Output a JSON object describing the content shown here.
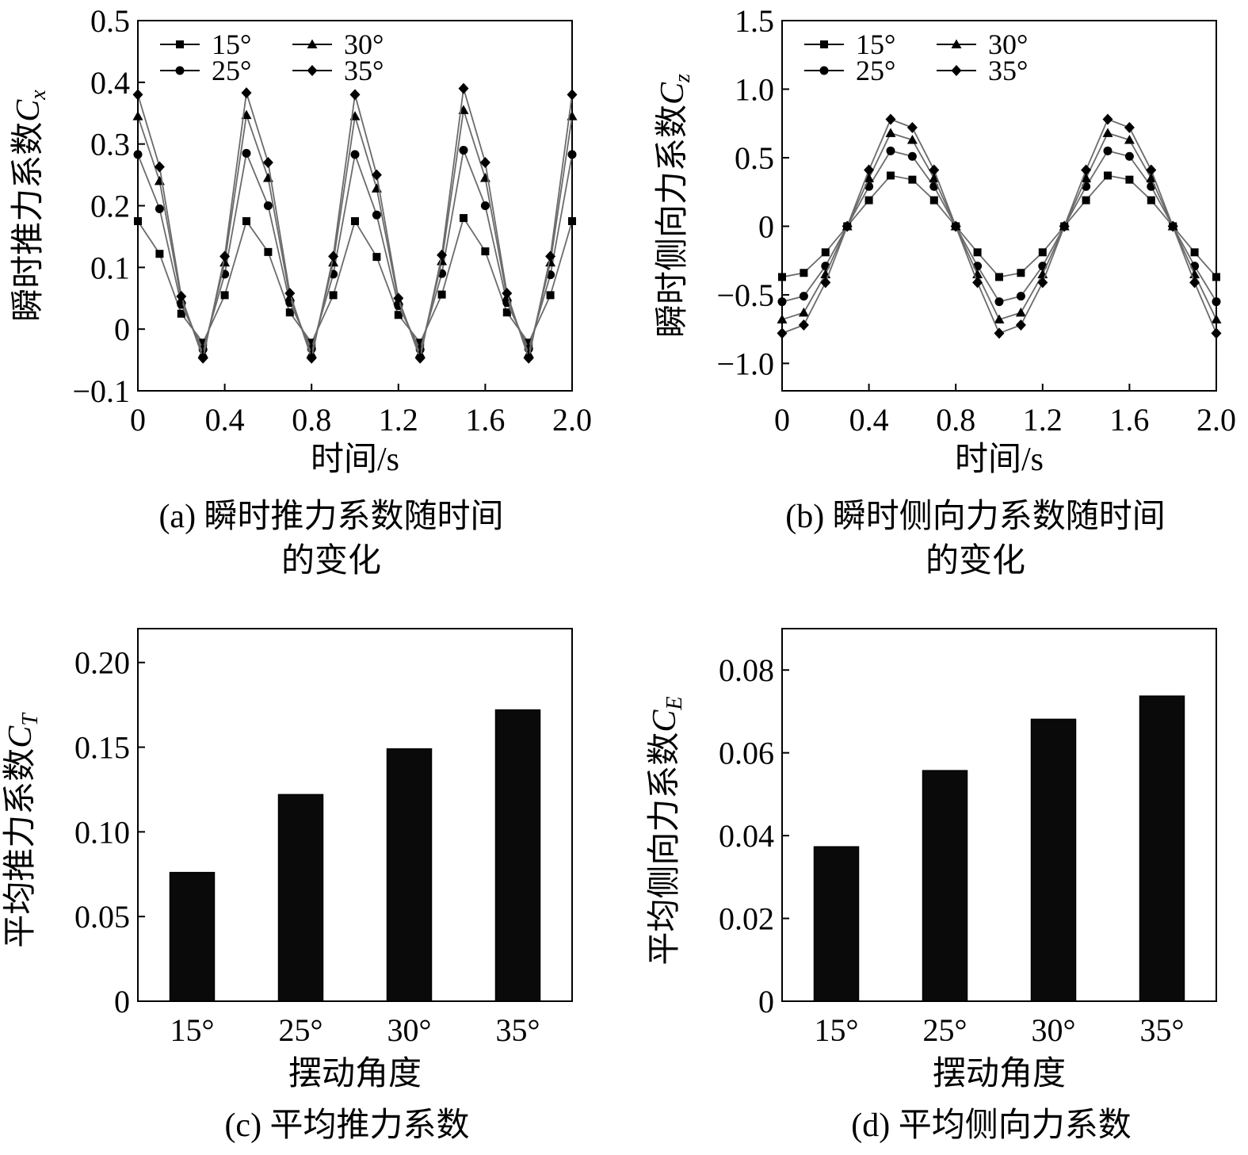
{
  "chart_data": [
    {
      "type": "line",
      "caption_line1": "(a) 瞬时推力系数随时间",
      "caption_line2": "的变化",
      "xlabel": "时间/s",
      "ylabel": "瞬时推力系数",
      "ylabel_symbol": "C",
      "ylabel_sub": "x",
      "xlim": [
        0,
        2.0
      ],
      "ylim": [
        -0.1,
        0.5
      ],
      "xticks": [
        "0",
        "0.4",
        "0.8",
        "1.2",
        "1.6",
        "2.0"
      ],
      "yticks": [
        "−0.1",
        "0",
        "0.1",
        "0.2",
        "0.3",
        "0.4",
        "0.5"
      ],
      "legend_position": "top-left",
      "x": [
        0,
        0.1,
        0.2,
        0.3,
        0.4,
        0.5,
        0.6,
        0.7,
        0.8,
        0.9,
        1.0,
        1.1,
        1.2,
        1.3,
        1.4,
        1.5,
        1.6,
        1.7,
        1.8,
        1.9,
        2.0
      ],
      "series": [
        {
          "name": "15°",
          "marker": "square",
          "values": [
            0.175,
            0.122,
            0.025,
            -0.022,
            0.055,
            0.175,
            0.125,
            0.027,
            -0.022,
            0.055,
            0.175,
            0.117,
            0.023,
            -0.022,
            0.056,
            0.18,
            0.126,
            0.027,
            -0.022,
            0.055,
            0.175
          ]
        },
        {
          "name": "25°",
          "marker": "circle",
          "values": [
            0.283,
            0.195,
            0.04,
            -0.033,
            0.089,
            0.285,
            0.2,
            0.043,
            -0.032,
            0.089,
            0.283,
            0.185,
            0.038,
            -0.033,
            0.09,
            0.29,
            0.2,
            0.043,
            -0.032,
            0.088,
            0.283
          ]
        },
        {
          "name": "30°",
          "marker": "triangle",
          "values": [
            0.345,
            0.24,
            0.048,
            -0.04,
            0.108,
            0.347,
            0.245,
            0.052,
            -0.04,
            0.108,
            0.345,
            0.228,
            0.046,
            -0.04,
            0.11,
            0.355,
            0.245,
            0.052,
            -0.04,
            0.108,
            0.345
          ]
        },
        {
          "name": "35°",
          "marker": "diamond",
          "values": [
            0.38,
            0.263,
            0.053,
            -0.047,
            0.118,
            0.383,
            0.27,
            0.058,
            -0.047,
            0.118,
            0.38,
            0.25,
            0.05,
            -0.047,
            0.12,
            0.39,
            0.27,
            0.058,
            -0.047,
            0.118,
            0.38
          ]
        }
      ]
    },
    {
      "type": "line",
      "caption_line1": "(b) 瞬时侧向力系数随时间",
      "caption_line2": "的变化",
      "xlabel": "时间/s",
      "ylabel": "瞬时侧向力系数",
      "ylabel_symbol": "C",
      "ylabel_sub": "z",
      "xlim": [
        0,
        2.0
      ],
      "ylim": [
        -1.2,
        1.5
      ],
      "xticks": [
        "0",
        "0.4",
        "0.8",
        "1.2",
        "1.6",
        "2.0"
      ],
      "yticks": [
        "−1.0",
        "−0.5",
        "0",
        "0.5",
        "1.0",
        "1.5"
      ],
      "ytick_values": [
        -1.0,
        -0.5,
        0,
        0.5,
        1.0,
        1.5
      ],
      "legend_position": "top-left",
      "x": [
        0,
        0.1,
        0.2,
        0.3,
        0.4,
        0.5,
        0.6,
        0.7,
        0.8,
        0.9,
        1.0,
        1.1,
        1.2,
        1.3,
        1.4,
        1.5,
        1.6,
        1.7,
        1.8,
        1.9,
        2.0
      ],
      "series": [
        {
          "name": "15°",
          "marker": "square",
          "values": [
            -0.37,
            -0.34,
            -0.19,
            0,
            0.19,
            0.37,
            0.34,
            0.19,
            0,
            -0.19,
            -0.37,
            -0.34,
            -0.19,
            0,
            0.19,
            0.37,
            0.34,
            0.19,
            0,
            -0.19,
            -0.37
          ]
        },
        {
          "name": "25°",
          "marker": "circle",
          "values": [
            -0.55,
            -0.51,
            -0.29,
            0,
            0.29,
            0.55,
            0.51,
            0.29,
            0,
            -0.29,
            -0.55,
            -0.51,
            -0.29,
            0,
            0.29,
            0.55,
            0.51,
            0.29,
            0,
            -0.29,
            -0.55
          ]
        },
        {
          "name": "30°",
          "marker": "triangle",
          "values": [
            -0.68,
            -0.63,
            -0.35,
            0,
            0.35,
            0.68,
            0.63,
            0.35,
            0,
            -0.35,
            -0.68,
            -0.63,
            -0.35,
            0,
            0.35,
            0.68,
            0.63,
            0.35,
            0,
            -0.35,
            -0.68
          ]
        },
        {
          "name": "35°",
          "marker": "diamond",
          "values": [
            -0.78,
            -0.72,
            -0.41,
            0,
            0.41,
            0.78,
            0.72,
            0.41,
            0,
            -0.41,
            -0.78,
            -0.72,
            -0.41,
            0,
            0.41,
            0.78,
            0.72,
            0.41,
            0,
            -0.41,
            -0.78
          ]
        }
      ]
    },
    {
      "type": "bar",
      "caption": "(c) 平均推力系数",
      "xlabel": "摆动角度",
      "ylabel": "平均推力系数",
      "ylabel_symbol": "C",
      "ylabel_sub": "T",
      "ylim": [
        0,
        0.22
      ],
      "yticks": [
        "0",
        "0.05",
        "0.10",
        "0.15",
        "0.20"
      ],
      "ytick_values": [
        0,
        0.05,
        0.1,
        0.15,
        0.2
      ],
      "categories": [
        "15°",
        "25°",
        "30°",
        "35°"
      ],
      "values": [
        0.076,
        0.122,
        0.149,
        0.172
      ]
    },
    {
      "type": "bar",
      "caption": "(d) 平均侧向力系数",
      "xlabel": "摆动角度",
      "ylabel": "平均侧向力系数",
      "ylabel_symbol": "C",
      "ylabel_sub": "E",
      "ylim": [
        0,
        0.09
      ],
      "yticks": [
        "0",
        "0.02",
        "0.04",
        "0.06",
        "0.08"
      ],
      "ytick_values": [
        0,
        0.02,
        0.04,
        0.06,
        0.08
      ],
      "categories": [
        "15°",
        "25°",
        "30°",
        "35°"
      ],
      "values": [
        0.0373,
        0.0557,
        0.0681,
        0.0737
      ]
    }
  ]
}
